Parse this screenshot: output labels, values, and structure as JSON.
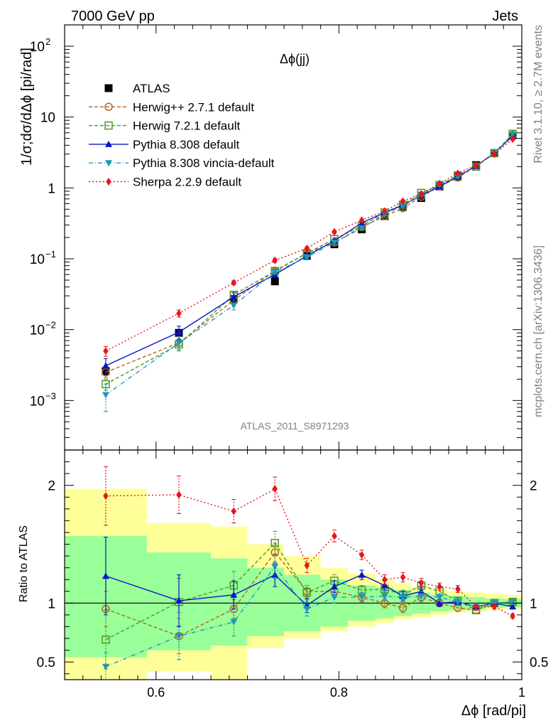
{
  "header": {
    "left": "7000 GeV pp",
    "right": "Jets"
  },
  "side_labels": {
    "rivet": "Rivet 3.1.10, ≥ 2.7M events",
    "mcplots": "mcplots.cern.ch [arXiv:1306.3436]"
  },
  "analysis_id": "ATLAS_2011_S8971293",
  "chart_data": [
    {
      "type": "line",
      "panel": "main",
      "title": "Δϕ(jj)",
      "ylabel": "1/σ;dσ/dΔϕ [pi/rad]",
      "yscale": "log",
      "xlim": [
        0.5,
        1.0
      ],
      "ylim": [
        0.0002,
        200
      ],
      "yticks": [
        {
          "v": 0.001,
          "label": "10",
          "sup": "−3"
        },
        {
          "v": 0.01,
          "label": "10",
          "sup": "−2"
        },
        {
          "v": 0.1,
          "label": "10",
          "sup": "−1"
        },
        {
          "v": 1,
          "label": "1",
          "sup": ""
        },
        {
          "v": 10,
          "label": "10",
          "sup": ""
        },
        {
          "v": 100,
          "label": "10",
          "sup": "2"
        }
      ],
      "legend_placement": "top-left",
      "x": [
        0.545,
        0.625,
        0.685,
        0.73,
        0.765,
        0.795,
        0.825,
        0.85,
        0.87,
        0.89,
        0.91,
        0.93,
        0.95,
        0.97,
        0.99
      ],
      "series": [
        {
          "name": "ATLAS",
          "color": "#000000",
          "marker": "square-filled",
          "dash": "none",
          "values": [
            0.0026,
            0.009,
            0.027,
            0.048,
            0.11,
            0.16,
            0.26,
            0.4,
            0.54,
            0.72,
            1.05,
            1.45,
            2.1,
            3.1,
            5.5
          ]
        },
        {
          "name": "Herwig++ 2.7.1 default",
          "color": "#b8631c",
          "marker": "circle-open",
          "dash": "5,3",
          "values": [
            0.0025,
            0.0065,
            0.026,
            0.068,
            0.12,
            0.17,
            0.28,
            0.4,
            0.52,
            0.75,
            1.05,
            1.4,
            2.0,
            3.1,
            5.6
          ],
          "errors": [
            0.0004,
            0.001,
            0.003,
            0.005,
            0.008,
            0.01,
            0.015,
            0.02,
            0.03,
            0.04,
            0.05,
            0.07,
            0.1,
            0.15,
            0.25
          ]
        },
        {
          "name": "Herwig 7.2.1 default",
          "color": "#4a9a2a",
          "marker": "square-open",
          "dash": "5,3",
          "values": [
            0.0017,
            0.0062,
            0.031,
            0.067,
            0.12,
            0.19,
            0.29,
            0.45,
            0.58,
            0.85,
            1.1,
            1.5,
            2.0,
            3.1,
            5.8
          ],
          "errors": [
            0.0003,
            0.001,
            0.003,
            0.005,
            0.008,
            0.01,
            0.015,
            0.02,
            0.03,
            0.04,
            0.05,
            0.07,
            0.1,
            0.15,
            0.25
          ]
        },
        {
          "name": "Pythia 8.308 default",
          "color": "#0a14c8",
          "marker": "triangle-up",
          "dash": "none",
          "values": [
            0.0031,
            0.0092,
            0.029,
            0.06,
            0.11,
            0.18,
            0.32,
            0.45,
            0.57,
            0.78,
            1.05,
            1.45,
            2.05,
            3.1,
            5.4
          ],
          "errors": [
            0.0008,
            0.002,
            0.004,
            0.005,
            0.008,
            0.01,
            0.015,
            0.02,
            0.03,
            0.04,
            0.05,
            0.07,
            0.1,
            0.15,
            0.25
          ]
        },
        {
          "name": "Pythia 8.308 vincia-default",
          "color": "#1a98b8",
          "marker": "triangle-down",
          "dash": "6,3,1,3",
          "values": [
            0.0012,
            0.0065,
            0.022,
            0.065,
            0.105,
            0.17,
            0.27,
            0.43,
            0.56,
            0.8,
            1.1,
            1.45,
            2.05,
            3.1,
            5.7
          ],
          "errors": [
            0.0005,
            0.0015,
            0.003,
            0.005,
            0.008,
            0.01,
            0.015,
            0.02,
            0.03,
            0.04,
            0.05,
            0.07,
            0.1,
            0.15,
            0.25
          ]
        },
        {
          "name": "Sherpa 2.2.9 default",
          "color": "#e8141e",
          "marker": "diamond",
          "dash": "2,3",
          "values": [
            0.005,
            0.017,
            0.046,
            0.095,
            0.14,
            0.24,
            0.35,
            0.47,
            0.65,
            0.82,
            1.15,
            1.6,
            2.1,
            3.0,
            4.9
          ],
          "errors": [
            0.0008,
            0.002,
            0.003,
            0.006,
            0.008,
            0.01,
            0.015,
            0.02,
            0.03,
            0.04,
            0.05,
            0.07,
            0.1,
            0.15,
            0.25
          ]
        }
      ]
    },
    {
      "type": "line",
      "panel": "ratio",
      "xlabel": "Δϕ [rad/pi]",
      "ylabel": "Ratio to ATLAS",
      "xlim": [
        0.5,
        1.0
      ],
      "ylim": [
        0.35,
        2.3
      ],
      "xticks": [
        0.6,
        0.8,
        1.0
      ],
      "xtick_labels": [
        "0.6",
        "0.8",
        "1"
      ],
      "yticks": [
        0.5,
        1,
        2
      ],
      "ytick_labels": [
        "0.5",
        "1",
        "2"
      ],
      "reference_line": 1,
      "band_edges": [
        0.5,
        0.59,
        0.66,
        0.7,
        0.74,
        0.78,
        0.81,
        0.84,
        0.86,
        0.88,
        0.9,
        0.92,
        0.94,
        0.96,
        0.98,
        1.0
      ],
      "band_green": [
        [
          0.54,
          1.57
        ],
        [
          0.6,
          1.43
        ],
        [
          0.64,
          1.38
        ],
        [
          0.72,
          1.3
        ],
        [
          0.76,
          1.24
        ],
        [
          0.8,
          1.2
        ],
        [
          0.85,
          1.15
        ],
        [
          0.87,
          1.13
        ],
        [
          0.89,
          1.11
        ],
        [
          0.91,
          1.09
        ],
        [
          0.93,
          1.07
        ],
        [
          0.94,
          1.06
        ],
        [
          0.95,
          1.05
        ],
        [
          0.96,
          1.04
        ],
        [
          0.965,
          1.035
        ]
      ],
      "band_yellow": [
        [
          0.3,
          1.97
        ],
        [
          0.42,
          1.68
        ],
        [
          0.3,
          1.65
        ],
        [
          0.62,
          1.5
        ],
        [
          0.7,
          1.4
        ],
        [
          0.76,
          1.3
        ],
        [
          0.8,
          1.25
        ],
        [
          0.83,
          1.2
        ],
        [
          0.86,
          1.17
        ],
        [
          0.88,
          1.14
        ],
        [
          0.9,
          1.12
        ],
        [
          0.92,
          1.1
        ],
        [
          0.93,
          1.09
        ],
        [
          0.94,
          1.08
        ],
        [
          0.95,
          1.07
        ]
      ],
      "series": [
        {
          "name": "Herwig++ 2.7.1 default",
          "color": "#b8631c",
          "marker": "circle-open",
          "dash": "5,3",
          "values": [
            0.95,
            0.72,
            0.95,
            1.43,
            1.1,
            1.1,
            1.05,
            1.0,
            0.96,
            1.05,
            1.0,
            0.96,
            0.94,
            1.0,
            1.01
          ],
          "errors": [
            0.15,
            0.15,
            0.08,
            0.08,
            0.05,
            0.04,
            0.04,
            0.04,
            0.04,
            0.04,
            0.03,
            0.03,
            0.03,
            0.02,
            0.02
          ]
        },
        {
          "name": "Herwig 7.2.1 default",
          "color": "#4a9a2a",
          "marker": "square-open",
          "dash": "5,3",
          "values": [
            0.69,
            1.01,
            1.15,
            1.51,
            1.09,
            1.19,
            1.11,
            1.12,
            1.07,
            1.15,
            1.1,
            1.02,
            0.94,
            1.0,
            1.01
          ],
          "errors": [
            0.25,
            0.2,
            0.12,
            0.1,
            0.06,
            0.05,
            0.04,
            0.04,
            0.04,
            0.04,
            0.03,
            0.03,
            0.03,
            0.02,
            0.02
          ]
        },
        {
          "name": "Pythia 8.308 default",
          "color": "#0a14c8",
          "marker": "triangle-up",
          "dash": "none",
          "values": [
            1.23,
            1.02,
            1.07,
            1.24,
            0.98,
            1.14,
            1.24,
            1.15,
            1.06,
            1.1,
            1.0,
            1.01,
            0.97,
            1.0,
            0.97
          ],
          "errors": [
            0.33,
            0.22,
            0.12,
            0.1,
            0.06,
            0.05,
            0.04,
            0.04,
            0.04,
            0.04,
            0.03,
            0.03,
            0.03,
            0.02,
            0.02
          ]
        },
        {
          "name": "Pythia 8.308 vincia-default",
          "color": "#1a98b8",
          "marker": "triangle-down",
          "dash": "6,3,1,3",
          "values": [
            0.46,
            0.72,
            0.84,
            1.31,
            0.95,
            1.05,
            1.05,
            1.06,
            1.05,
            1.06,
            1.05,
            1.01,
            0.97,
            1.0,
            1.01
          ],
          "errors": [
            0.12,
            0.2,
            0.12,
            0.1,
            0.06,
            0.05,
            0.04,
            0.04,
            0.04,
            0.04,
            0.03,
            0.03,
            0.03,
            0.02,
            0.02
          ]
        },
        {
          "name": "Sherpa 2.2.9 default",
          "color": "#e8141e",
          "marker": "diamond",
          "dash": "2,3",
          "values": [
            1.91,
            1.92,
            1.78,
            1.97,
            1.32,
            1.57,
            1.41,
            1.2,
            1.22,
            1.17,
            1.14,
            1.12,
            0.97,
            0.97,
            0.89
          ],
          "errors": [
            0.25,
            0.16,
            0.1,
            0.1,
            0.06,
            0.05,
            0.04,
            0.04,
            0.04,
            0.04,
            0.03,
            0.03,
            0.03,
            0.02,
            0.02
          ]
        }
      ]
    }
  ]
}
